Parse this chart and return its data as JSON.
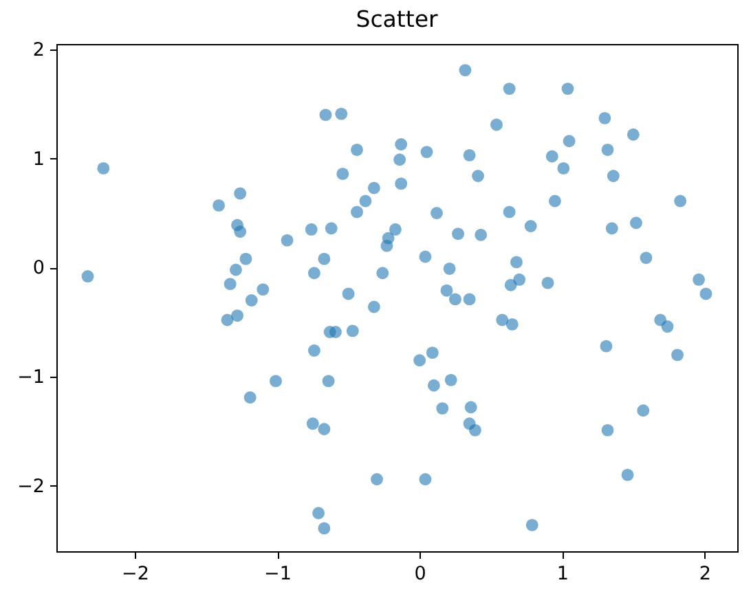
{
  "chart_data": {
    "type": "scatter",
    "title": "Scatter",
    "marker": "circle",
    "color": "#1f77b4",
    "xlim": [
      -2.55,
      2.23
    ],
    "ylim": [
      -2.6,
      2.05
    ],
    "xticks": [
      -2,
      -1,
      0,
      1,
      2
    ],
    "yticks": [
      -2,
      -1,
      0,
      1,
      2
    ],
    "x": [
      -0.66,
      -0.55,
      -0.44,
      -2.22,
      -0.54,
      -1.26,
      -1.41,
      -0.32,
      -0.38,
      -0.44,
      -1.28,
      -1.26,
      -0.93,
      -0.76,
      -0.62,
      -1.22,
      -1.29,
      -0.67,
      -0.74,
      -2.33,
      -1.33,
      -1.1,
      -1.18,
      -0.5,
      -0.26,
      -0.32,
      -0.22,
      -0.23,
      -0.17,
      0.32,
      0.63,
      1.04,
      0.54,
      1.3,
      1.5,
      -0.13,
      -0.14,
      -0.13,
      0.05,
      0.35,
      0.41,
      1.05,
      0.93,
      1.01,
      1.32,
      1.36,
      0.95,
      1.83,
      0.12,
      0.63,
      0.78,
      0.27,
      0.43,
      1.35,
      1.52,
      0.04,
      0.21,
      0.68,
      1.59,
      0.19,
      0.25,
      0.35,
      0.64,
      0.7,
      0.9,
      1.96,
      2.01,
      0.58,
      0.65,
      1.69,
      1.74,
      1.31,
      1.81,
      0,
      0.09,
      0.1,
      0.22,
      0.16,
      0.36,
      0.35,
      0.39,
      1.57,
      1.32,
      1.46,
      0.04,
      0.79,
      -1.35,
      -1.28,
      -0.63,
      -0.59,
      -0.47,
      -0.74,
      -1.01,
      -0.64,
      -1.19,
      -0.75,
      -0.67,
      -0.3,
      -0.71,
      -0.67
    ],
    "values": [
      1.4,
      1.41,
      1.08,
      0.91,
      0.86,
      0.68,
      0.57,
      0.73,
      0.61,
      0.51,
      0.39,
      0.33,
      0.25,
      0.35,
      0.36,
      0.08,
      -0.02,
      0.08,
      -0.05,
      -0.08,
      -0.15,
      -0.2,
      -0.3,
      -0.24,
      -0.05,
      -0.36,
      0.27,
      0.2,
      0.35,
      1.81,
      1.64,
      1.64,
      1.31,
      1.37,
      1.22,
      1.13,
      0.99,
      0.77,
      1.06,
      1.03,
      0.84,
      1.16,
      1.02,
      0.91,
      1.08,
      0.84,
      0.61,
      0.61,
      0.5,
      0.51,
      0.38,
      0.31,
      0.3,
      0.36,
      0.41,
      0.1,
      -0.01,
      0.05,
      0.09,
      -0.21,
      -0.29,
      -0.29,
      -0.16,
      -0.11,
      -0.14,
      -0.11,
      -0.24,
      -0.48,
      -0.52,
      -0.48,
      -0.54,
      -0.72,
      -0.8,
      -0.85,
      -0.78,
      -1.08,
      -1.03,
      -1.29,
      -1.28,
      -1.43,
      -1.49,
      -1.31,
      -1.49,
      -1.9,
      -1.94,
      -2.36,
      -0.48,
      -0.44,
      -0.59,
      -0.59,
      -0.58,
      -0.76,
      -1.04,
      -1.04,
      -1.19,
      -1.43,
      -1.48,
      -1.94,
      -2.25,
      -2.39
    ]
  }
}
